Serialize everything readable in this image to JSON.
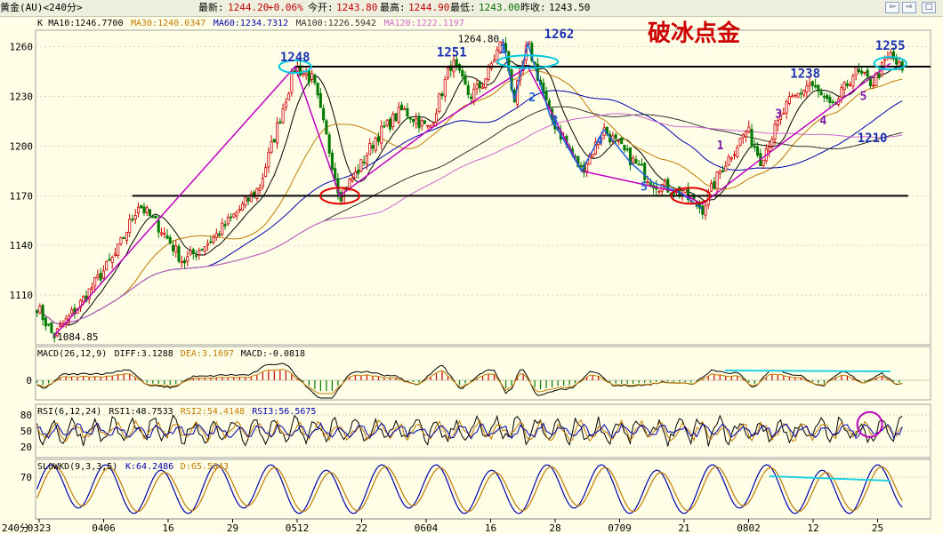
{
  "header": {
    "symbol": "黄金(AU)<240分>",
    "latest_label": "最新:",
    "latest_value": "1244.20",
    "change": "+0.06%",
    "open_label": "今开:",
    "open_value": "1243.80",
    "high_label": "最高:",
    "high_value": "1244.90",
    "low_label": "最低:",
    "low_value": "1243.00",
    "prev_label": "昨收:",
    "prev_value": "1243.50"
  },
  "window_buttons": [
    "⇦",
    "⇨",
    "□"
  ],
  "title": "破冰点金",
  "colors": {
    "up": "#d00000",
    "down": "#007a00",
    "ma10": "#000000",
    "ma30": "#c07a00",
    "ma60": "#0000aa",
    "ma100": "#303030",
    "ma120": "#cc66cc",
    "trend": "#c000c0",
    "wave": "#1e5fd8",
    "support": "#000000",
    "ellipse_top": "#00c8e0",
    "ellipse_bottom": "#e00000",
    "divergence": "#22d0e0"
  },
  "legends": {
    "main": {
      "prefix": "K",
      "items": [
        {
          "text": "MA10:1246.7700",
          "color": "#000000"
        },
        {
          "text": "MA30:1240.0347",
          "color": "#c07a00"
        },
        {
          "text": "MA60:1234.7312",
          "color": "#0000aa"
        },
        {
          "text": "MA100:1226.5942",
          "color": "#303030"
        },
        {
          "text": "MA120:1222.1197",
          "color": "#cc66cc"
        }
      ]
    },
    "macd": {
      "prefix": "MACD(26,12,9)",
      "items": [
        {
          "text": "DIFF:3.1288",
          "color": "#000000"
        },
        {
          "text": "DEA:3.1697",
          "color": "#c07a00"
        },
        {
          "text": "MACD:-0.0818",
          "color": "#000000"
        }
      ]
    },
    "rsi": {
      "prefix": "RSI(6,12,24)",
      "items": [
        {
          "text": "RSI1:48.7533",
          "color": "#000000"
        },
        {
          "text": "RSI2:54.4148",
          "color": "#c07a00"
        },
        {
          "text": "RSI3:56.5675",
          "color": "#0000aa"
        }
      ]
    },
    "kd": {
      "prefix": "SLOWKD(9,3,3,5)",
      "items": [
        {
          "text": "K:64.2486",
          "color": "#0000aa"
        },
        {
          "text": "D:65.5843",
          "color": "#c07a00"
        }
      ]
    }
  },
  "chart_data": {
    "type": "candlestick",
    "interval": "240分",
    "x_tick_labels": [
      "0323",
      "0406",
      "16",
      "29",
      "0512",
      "22",
      "0604",
      "16",
      "28",
      "0709",
      "21",
      "0802",
      "12",
      "25"
    ],
    "x_unit_label": "240分",
    "y_ticks": [
      1110,
      1140,
      1170,
      1200,
      1230,
      1260
    ],
    "ylim": [
      1080,
      1270
    ],
    "anchor_prices": [
      {
        "x": 0.0,
        "y": 1105
      },
      {
        "x": 0.02,
        "y": 1084.85
      },
      {
        "x": 0.05,
        "y": 1105
      },
      {
        "x": 0.09,
        "y": 1135
      },
      {
        "x": 0.115,
        "y": 1165
      },
      {
        "x": 0.14,
        "y": 1150
      },
      {
        "x": 0.165,
        "y": 1130
      },
      {
        "x": 0.2,
        "y": 1145
      },
      {
        "x": 0.25,
        "y": 1175
      },
      {
        "x": 0.29,
        "y": 1248
      },
      {
        "x": 0.31,
        "y": 1240
      },
      {
        "x": 0.34,
        "y": 1170
      },
      {
        "x": 0.36,
        "y": 1185
      },
      {
        "x": 0.38,
        "y": 1205
      },
      {
        "x": 0.41,
        "y": 1222
      },
      {
        "x": 0.44,
        "y": 1210
      },
      {
        "x": 0.465,
        "y": 1251
      },
      {
        "x": 0.485,
        "y": 1230
      },
      {
        "x": 0.5,
        "y": 1238
      },
      {
        "x": 0.522,
        "y": 1264.8
      },
      {
        "x": 0.535,
        "y": 1228
      },
      {
        "x": 0.55,
        "y": 1262
      },
      {
        "x": 0.575,
        "y": 1218
      },
      {
        "x": 0.61,
        "y": 1185
      },
      {
        "x": 0.635,
        "y": 1210
      },
      {
        "x": 0.66,
        "y": 1195
      },
      {
        "x": 0.69,
        "y": 1178
      },
      {
        "x": 0.72,
        "y": 1172
      },
      {
        "x": 0.745,
        "y": 1162
      },
      {
        "x": 0.765,
        "y": 1185
      },
      {
        "x": 0.795,
        "y": 1210
      },
      {
        "x": 0.81,
        "y": 1192
      },
      {
        "x": 0.84,
        "y": 1225
      },
      {
        "x": 0.865,
        "y": 1238
      },
      {
        "x": 0.89,
        "y": 1222
      },
      {
        "x": 0.915,
        "y": 1245
      },
      {
        "x": 0.935,
        "y": 1238
      },
      {
        "x": 0.955,
        "y": 1255
      },
      {
        "x": 0.97,
        "y": 1244.2
      }
    ],
    "support_level": 1170,
    "resistance_level": 1248,
    "price_labels": [
      {
        "text": "1248",
        "x": 0.29,
        "y": 1248
      },
      {
        "text": "1251",
        "x": 0.465,
        "y": 1251
      },
      {
        "text": "1264.80",
        "x": 0.522,
        "y": 1264.8
      },
      {
        "text": "1262",
        "x": 0.585,
        "y": 1262
      },
      {
        "text": "1238",
        "x": 0.86,
        "y": 1238
      },
      {
        "text": "1255",
        "x": 0.955,
        "y": 1255
      },
      {
        "text": "1210",
        "x": 0.935,
        "y": 1210
      },
      {
        "text": "1084.85",
        "x": 0.02,
        "y": 1084.85
      }
    ],
    "wave_labels": [
      {
        "text": "1",
        "x": 0.522,
        "y": 1256
      },
      {
        "text": "2",
        "x": 0.555,
        "y": 1227
      },
      {
        "text": "3",
        "x": 0.58,
        "y": 1213
      },
      {
        "text": "4",
        "x": 0.63,
        "y": 1201
      },
      {
        "text": "5",
        "x": 0.68,
        "y": 1173
      },
      {
        "text": "1",
        "x": 0.765,
        "y": 1198
      },
      {
        "text": "3",
        "x": 0.83,
        "y": 1217
      },
      {
        "text": "4",
        "x": 0.88,
        "y": 1213
      },
      {
        "text": "5",
        "x": 0.925,
        "y": 1228
      }
    ],
    "indicators": {
      "macd": {
        "y_ticks": [
          0
        ]
      },
      "rsi": {
        "y_ticks": [
          20,
          50,
          80
        ]
      },
      "kd": {
        "y_ticks": [
          70
        ]
      }
    }
  }
}
